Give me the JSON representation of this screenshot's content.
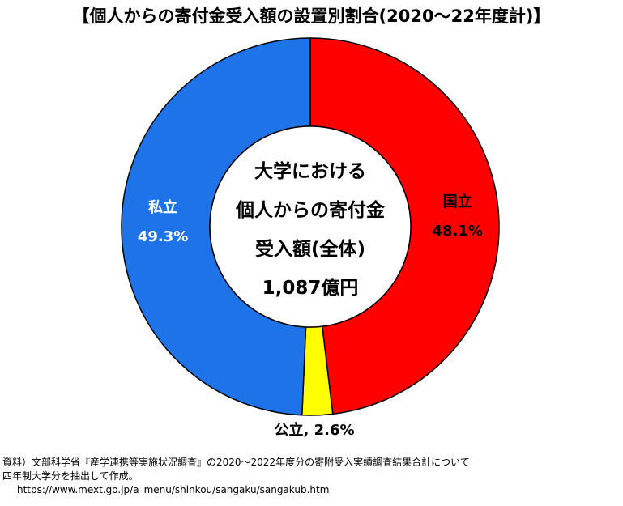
{
  "title": "【個人からの寄付金受入額の設置別割合(2020～22年度計)】",
  "chart_data": {
    "type": "pie",
    "donut": true,
    "center_label": [
      "大学における",
      "個人からの寄付金",
      "受入額(全体)",
      "1,087億円"
    ],
    "slices": [
      {
        "name": "国立",
        "value": 48.1,
        "label": "48.1%",
        "color": "#ff0000"
      },
      {
        "name": "公立",
        "value": 2.6,
        "label": "2.6%",
        "color": "#ffff00"
      },
      {
        "name": "私立",
        "value": 49.3,
        "label": "49.3%",
        "color": "#1e73e8"
      }
    ]
  },
  "source": {
    "line1": "資料）文部科学省『産学連携等実施状況調査』の2020～2022年度分の寄附受入実績調査結果合計について",
    "line2": "四年制大学分を抽出して作成。",
    "url": "https://www.mext.go.jp/a_menu/shinkou/sangaku/sangakub.htm"
  }
}
